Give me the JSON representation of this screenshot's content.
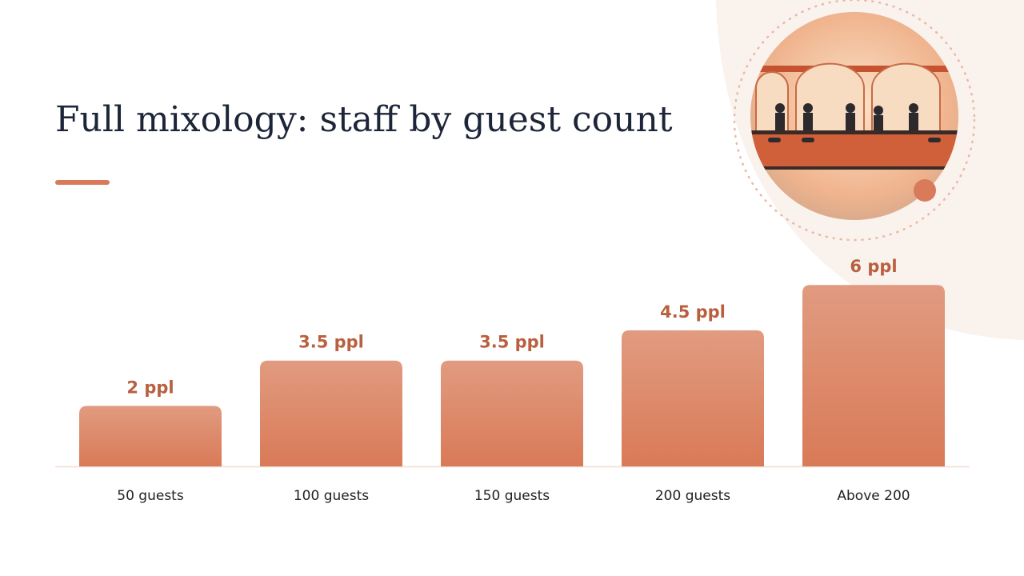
{
  "chart_data": {
    "type": "bar",
    "title": "Full mixology: staff by guest count",
    "categories": [
      "50 guests",
      "100 guests",
      "150 guests",
      "200 guests",
      "Above 200"
    ],
    "values": [
      2,
      3.5,
      3.5,
      4.5,
      6
    ],
    "value_labels": [
      "2 ppl",
      "3.5 ppl",
      "3.5 ppl",
      "4.5 ppl",
      "6 ppl"
    ],
    "color": "#dc8565"
  }
}
